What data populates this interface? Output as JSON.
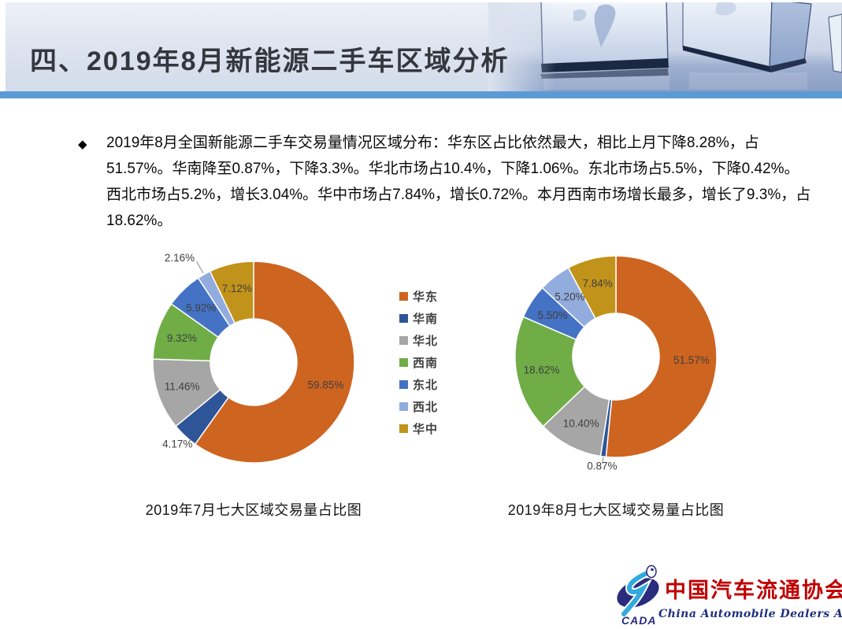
{
  "slide": {
    "title": "四、2019年8月新能源二手车区域分析",
    "title_color": "#34373E",
    "accent_bar_color": "#5B9BD5"
  },
  "paragraph": {
    "bullet": "◆",
    "lines": [
      "2019年8月全国新能源二手车交易量情况区域分布：华东区占比依然最大，相比上月下降8.28%，占",
      "51.57%。华南降至0.87%，下降3.3%。华北市场占10.4%，下降1.06%。东北市场占5.5%，下降0.42%。",
      "西北市场占5.2%，增长3.04%。华中市场占7.84%，增长0.72%。本月西南市场增长最多，增长了9.3%，占",
      "18.62%。"
    ]
  },
  "legend": {
    "position": "between-charts",
    "items": [
      {
        "label": "华东",
        "color": "#CD6420"
      },
      {
        "label": "华南",
        "color": "#2E5597"
      },
      {
        "label": "华北",
        "color": "#A6A6A6"
      },
      {
        "label": "西南",
        "color": "#70AD47"
      },
      {
        "label": "东北",
        "color": "#4472C4"
      },
      {
        "label": "西北",
        "color": "#93ACDE"
      },
      {
        "label": "华中",
        "color": "#C2931A"
      }
    ]
  },
  "chart_data": [
    {
      "type": "pie",
      "subtype": "donut",
      "title": "2019年7月七大区域交易量占比图",
      "categories": [
        "华东",
        "华南",
        "华北",
        "西南",
        "东北",
        "西北",
        "华中"
      ],
      "values": [
        59.85,
        4.17,
        11.46,
        9.32,
        5.92,
        2.16,
        7.12
      ],
      "labels": [
        "59.85%",
        "4.17%",
        "11.46%",
        "9.32%",
        "5.92%",
        "2.16%",
        "7.12%"
      ],
      "colors": [
        "#CD6420",
        "#2E5597",
        "#A6A6A6",
        "#70AD47",
        "#4472C4",
        "#93ACDE",
        "#C2931A"
      ],
      "label_pos": [
        "inside",
        "outside",
        "inside",
        "inside",
        "inside",
        "outside-leader",
        "inside"
      ],
      "start_angle_deg": 0,
      "direction": "clockwise",
      "label_color": "#3F3F3F"
    },
    {
      "type": "pie",
      "subtype": "donut",
      "title": "2019年8月七大区域交易量占比图",
      "categories": [
        "华东",
        "华南",
        "华北",
        "西南",
        "东北",
        "西北",
        "华中"
      ],
      "values": [
        51.57,
        0.87,
        10.4,
        18.62,
        5.5,
        5.2,
        7.84
      ],
      "labels": [
        "51.57%",
        "0.87%",
        "10.40%",
        "18.62%",
        "5.50%",
        "5.20%",
        "7.84%"
      ],
      "colors": [
        "#CD6420",
        "#2E5597",
        "#A6A6A6",
        "#70AD47",
        "#4472C4",
        "#93ACDE",
        "#C2931A"
      ],
      "label_pos": [
        "inside",
        "outside-leader",
        "inside",
        "inside",
        "inside",
        "inside",
        "inside"
      ],
      "start_angle_deg": 0,
      "direction": "clockwise",
      "label_color": "#3F3F3F"
    }
  ],
  "logo": {
    "acronym": "CADA",
    "name_cn": "中国汽车流通协会",
    "name_en": "China Automobile Dealers Association",
    "red": "#C00000",
    "navy": "#2A2C7C",
    "cyan": "#31AADF"
  }
}
